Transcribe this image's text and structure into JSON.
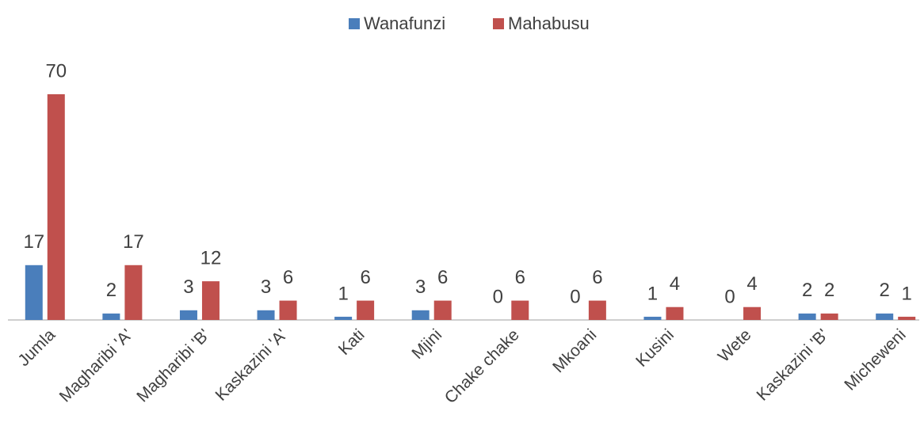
{
  "chart_data": {
    "type": "bar",
    "categories": [
      "Jumla",
      "Magharibi 'A'",
      "Magharibi 'B'",
      "Kaskazini 'A'",
      "Kati",
      "Mjini",
      "Chake chake",
      "Mkoani",
      "Kusini",
      "Wete",
      "Kaskazini 'B'",
      "Micheweni"
    ],
    "series": [
      {
        "name": "Wanafunzi",
        "color": "#4a7ebb",
        "values": [
          17,
          2,
          3,
          3,
          1,
          3,
          0,
          0,
          1,
          0,
          2,
          2
        ]
      },
      {
        "name": "Mahabusu",
        "color": "#c0504d",
        "values": [
          70,
          17,
          12,
          6,
          6,
          6,
          6,
          6,
          4,
          4,
          2,
          1
        ]
      }
    ],
    "legend": "top"
  }
}
